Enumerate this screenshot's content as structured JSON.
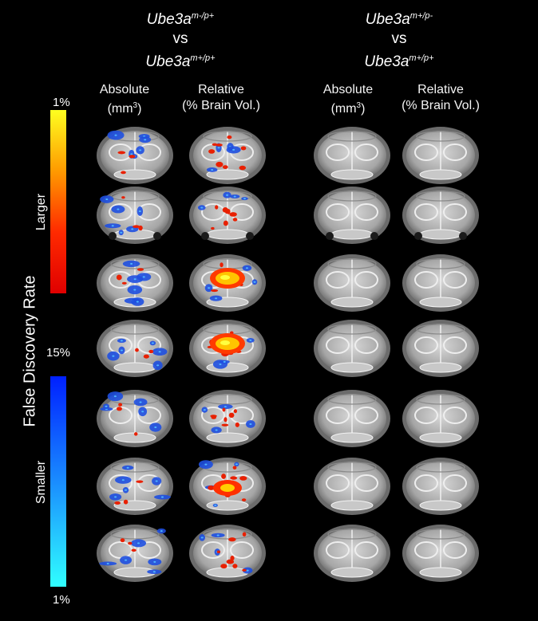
{
  "groups": [
    {
      "title_main_a": "Ube3a",
      "title_sup_a": "m-/p+",
      "vs": "vs",
      "title_main_b": "Ube3a",
      "title_sup_b": "m+/p+"
    },
    {
      "title_main_a": "Ube3a",
      "title_sup_a": "m+/p-",
      "vs": "vs",
      "title_main_b": "Ube3a",
      "title_sup_b": "m+/p+"
    }
  ],
  "columns": {
    "absolute_line1": "Absolute",
    "absolute_line2": "(mm",
    "absolute_sup": "3",
    "absolute_close": ")",
    "relative_line1": "Relative",
    "relative_line2": "(% Brain Vol.)"
  },
  "colorbar": {
    "axis_label": "False Discovery Rate",
    "top_label": "1%",
    "middle_label": "15%",
    "bottom_label": "1%",
    "larger_label": "Larger",
    "smaller_label": "Smaller",
    "warm_colors": [
      "#ffff20",
      "#ff9a00",
      "#ff2a00",
      "#e00000"
    ],
    "cool_colors": [
      "#0020ff",
      "#1a8cff",
      "#30ffff"
    ]
  },
  "rows": 7
}
